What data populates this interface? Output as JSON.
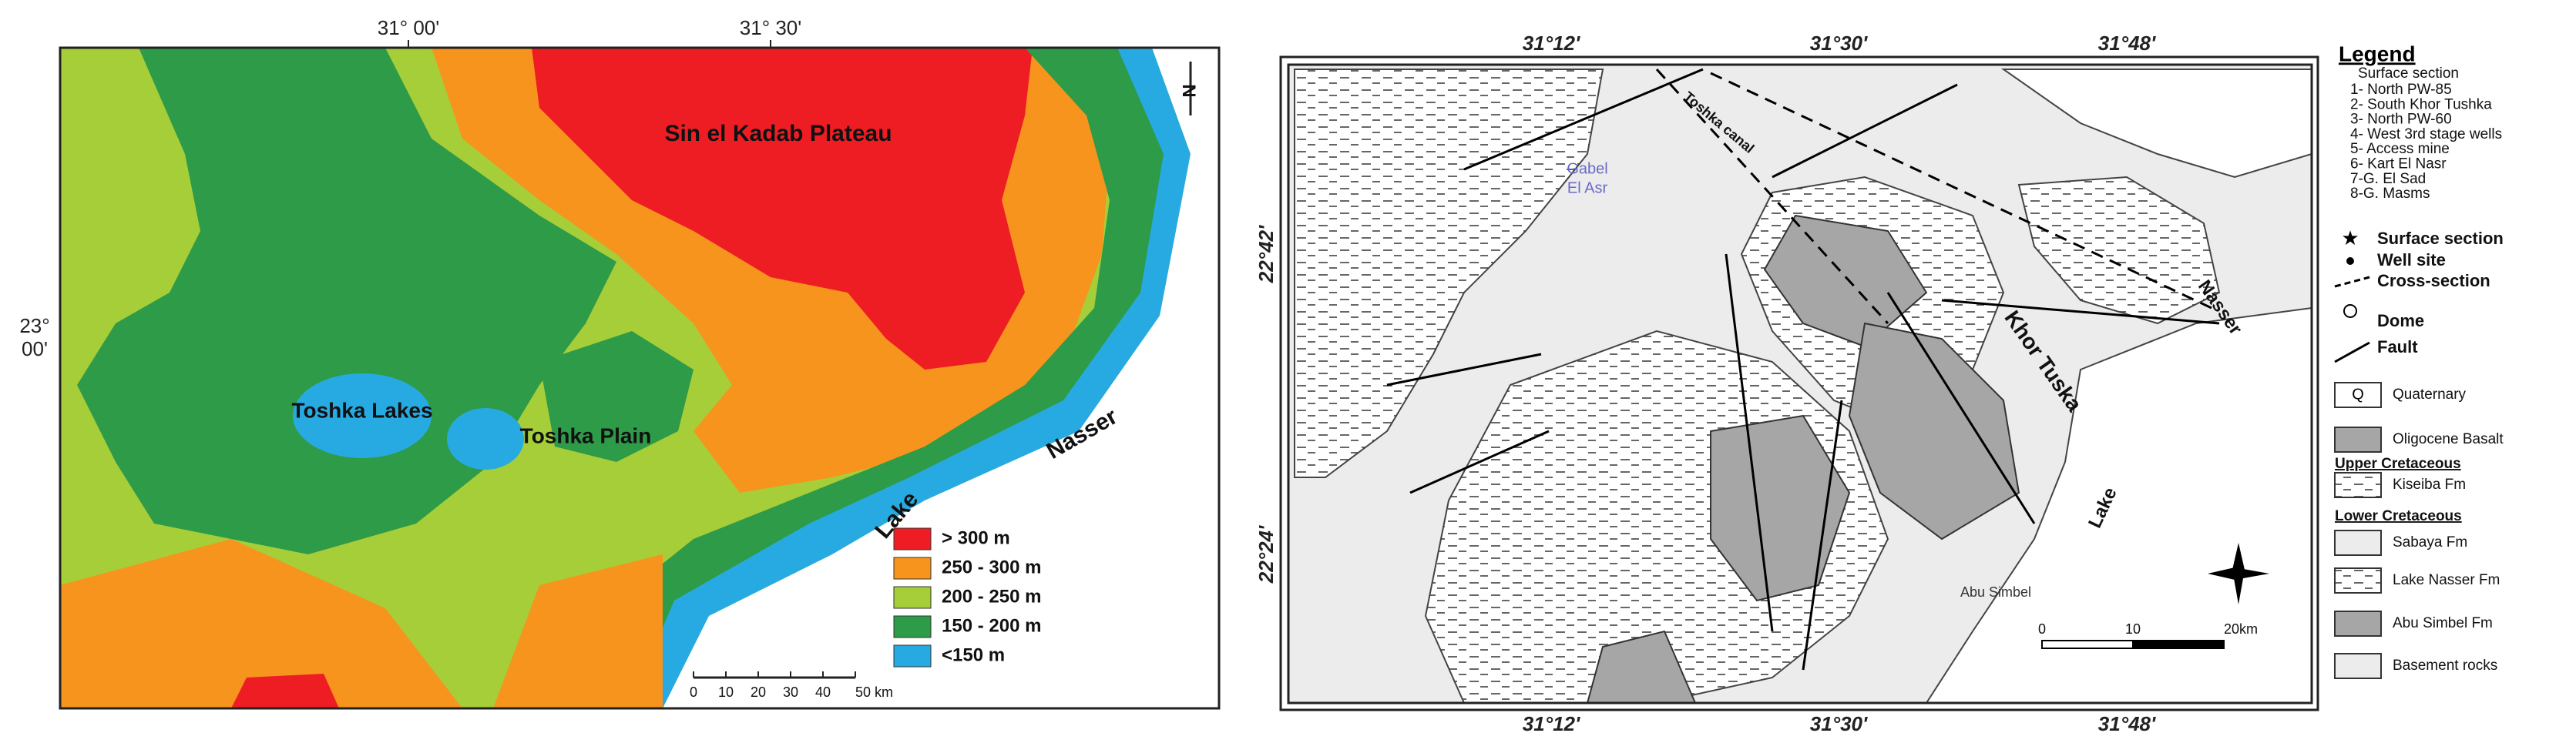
{
  "left_map": {
    "longitude_labels": [
      "31° 00'",
      "31° 30'"
    ],
    "latitude_label": {
      "degrees": "23°",
      "minutes": "00'"
    },
    "places": [
      "Sin el Kadab Plateau",
      "Toshka Lakes",
      "Toshka Plain",
      "Lake",
      "Nasser"
    ],
    "north": "N",
    "legend": [
      {
        "label": "> 300 m",
        "color": "#ee1d23"
      },
      {
        "label": "250 - 300 m",
        "color": "#f7941d"
      },
      {
        "label": "200 - 250 m",
        "color": "#a6ce39"
      },
      {
        "label": "150 - 200 m",
        "color": "#2e9b48"
      },
      {
        "label": "<150 m",
        "color": "#27aae1"
      }
    ],
    "scale_labels": [
      "0",
      "10",
      "20",
      "30",
      "40",
      "50 km"
    ]
  },
  "right_map": {
    "longitude_labels": [
      "31°12'",
      "31°30'",
      "31°48'"
    ],
    "latitude_labels": [
      "22°42'",
      "22°24'"
    ],
    "places": [
      "Gabel",
      "El Asr",
      "Toshka canal",
      "Khor Tuska",
      "Lake",
      "Nasser",
      "Abu Simbel"
    ],
    "scale_labels": [
      "0",
      "10",
      "20km"
    ],
    "legend": {
      "title": "Legend",
      "sections_title": "Surface section",
      "sections": [
        "1- North PW-85",
        "2- South Khor Tushka",
        "3- North PW-60",
        "4- West 3rd stage wells",
        "5- Access mine",
        "6- Kart El Nasr",
        "7-G. El Sad",
        "8-G. Masms"
      ],
      "symbols": [
        "Surface section",
        "Well site",
        "Cross-section",
        "Dome",
        "Fault"
      ],
      "quaternary_code": "Q",
      "quaternary": "Quaternary",
      "basalt": "Oligocene Basalt",
      "upper_cretaceous": "Upper Cretaceous",
      "kiseiba": "Kiseiba Fm",
      "lower_cretaceous": "Lower Cretaceous",
      "sabaya": "Sabaya Fm",
      "lake_nasser": "Lake Nasser Fm",
      "abu_simbel": "Abu Simbel Fm",
      "basement": "Basement rocks"
    }
  }
}
